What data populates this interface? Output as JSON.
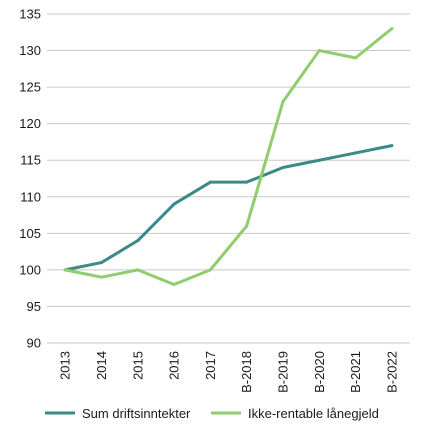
{
  "chart_data": {
    "type": "line",
    "title": "",
    "xlabel": "",
    "ylabel": "",
    "categories": [
      "2013",
      "2014",
      "2015",
      "2016",
      "2017",
      "B-2018",
      "B-2019",
      "B-2020",
      "B-2021",
      "B-2022"
    ],
    "ylim": [
      90,
      135
    ],
    "yticks": [
      90,
      95,
      100,
      105,
      110,
      115,
      120,
      125,
      130,
      135
    ],
    "grid": "horizontal",
    "legend_position": "bottom",
    "series": [
      {
        "name": "Sum driftsinntekter",
        "color": "#3a8a87",
        "values": [
          100,
          101,
          104,
          109,
          112,
          112,
          114,
          115,
          116,
          117
        ]
      },
      {
        "name": "Ikke-rentable lånegjeld",
        "color": "#8fcd6d",
        "values": [
          100,
          99,
          100,
          98,
          100,
          106,
          123,
          130,
          129,
          133
        ]
      }
    ]
  }
}
